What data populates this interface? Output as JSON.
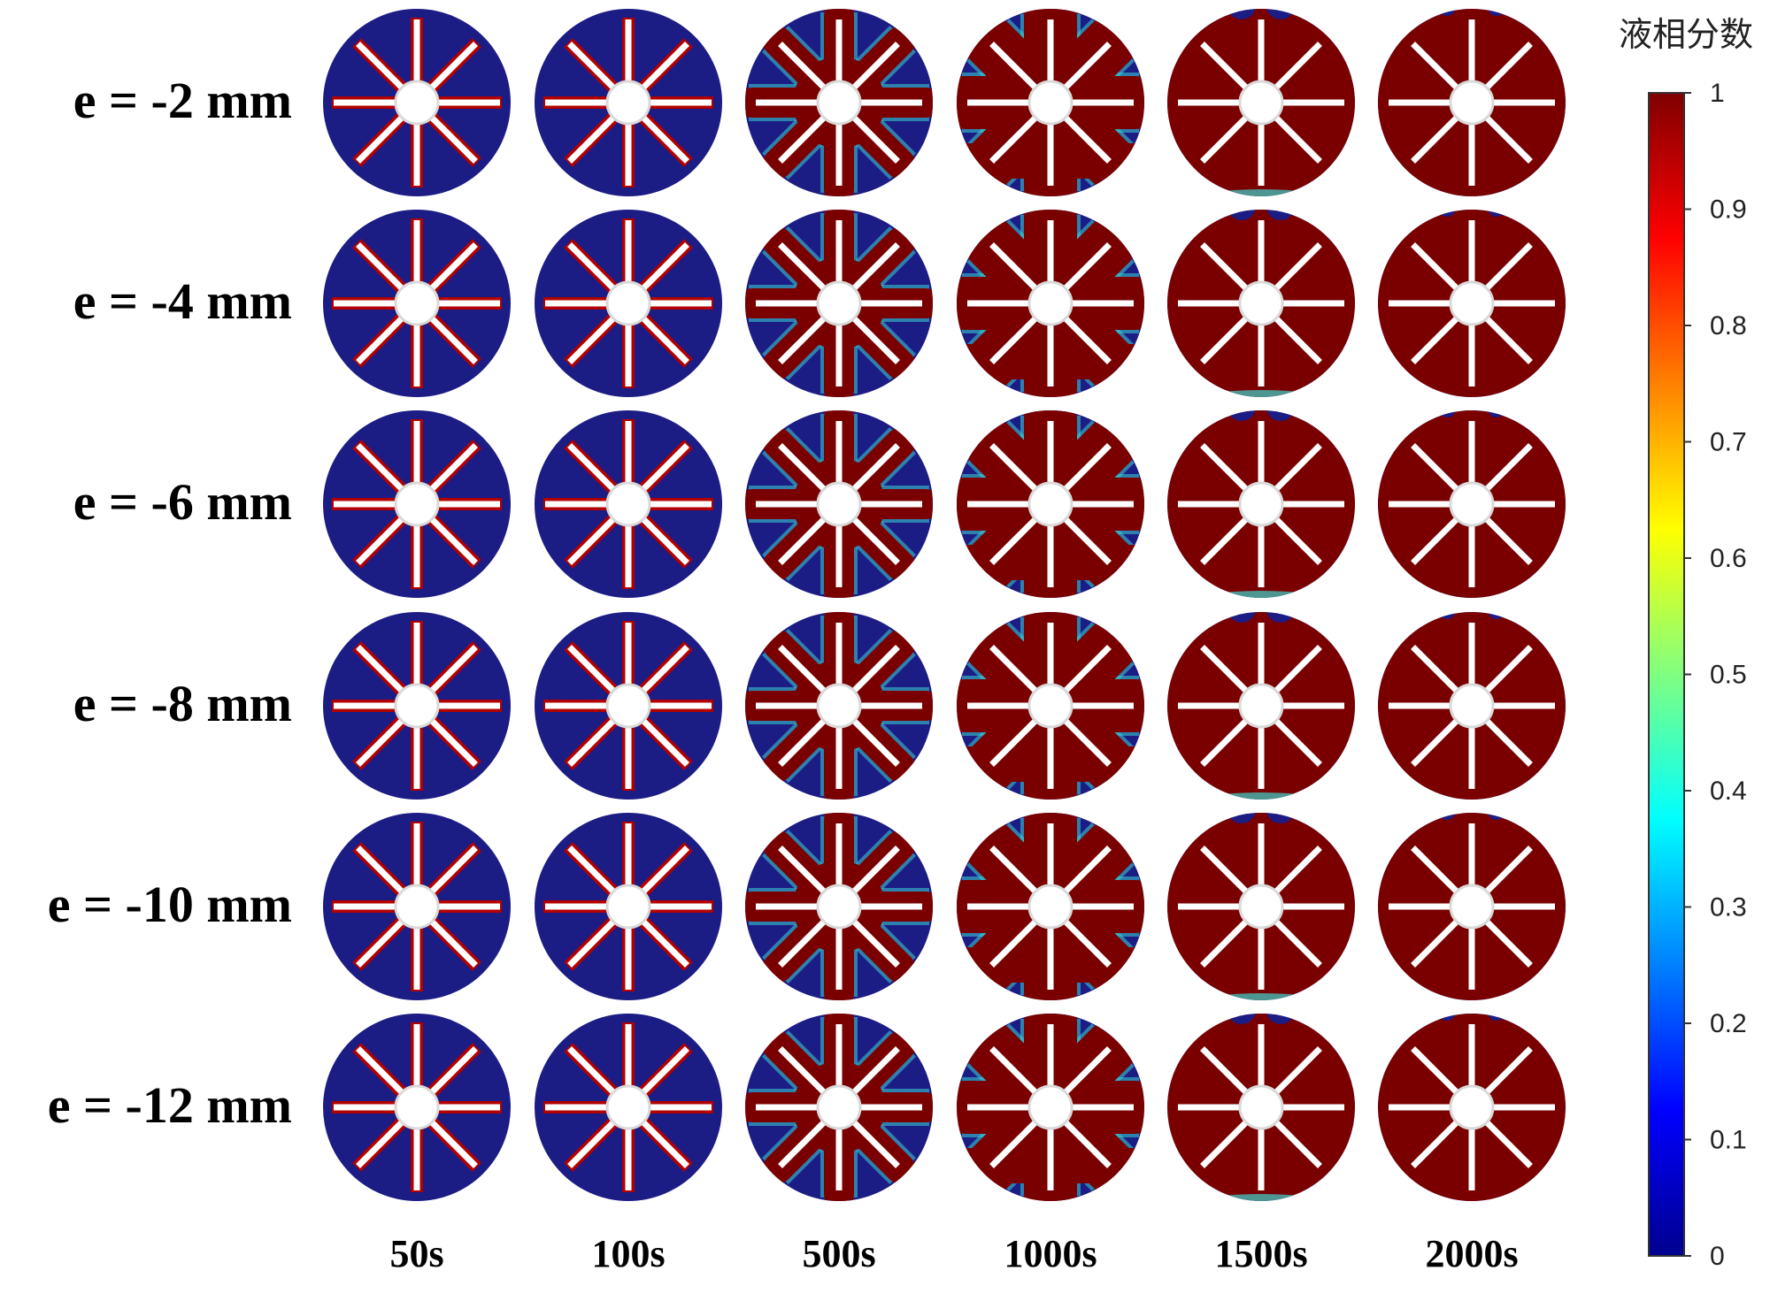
{
  "rows": [
    {
      "label": "e = -2 mm"
    },
    {
      "label": "e = -4 mm"
    },
    {
      "label": "e = -6 mm"
    },
    {
      "label": "e = -8 mm"
    },
    {
      "label": "e = -10 mm"
    },
    {
      "label": "e = -12 mm"
    }
  ],
  "columns": [
    {
      "label": "50s"
    },
    {
      "label": "100s"
    },
    {
      "label": "500s"
    },
    {
      "label": "1000s"
    },
    {
      "label": "1500s"
    },
    {
      "label": "2000s"
    }
  ],
  "melt_stage": [
    [
      0,
      0,
      1,
      2,
      3,
      4
    ],
    [
      0,
      0,
      1,
      2,
      3,
      4
    ],
    [
      0,
      0,
      1,
      2,
      3,
      4
    ],
    [
      0,
      0,
      1,
      2,
      3,
      4
    ],
    [
      0,
      0,
      1,
      2,
      3,
      4
    ],
    [
      0,
      0,
      1,
      2,
      3,
      4
    ]
  ],
  "colorbar": {
    "title": "液相分数",
    "ticks": [
      "1",
      "0.9",
      "0.8",
      "0.7",
      "0.6",
      "0.5",
      "0.4",
      "0.3",
      "0.2",
      "0.1",
      "0"
    ],
    "colors": [
      "#800000",
      "#ff0000",
      "#ff8000",
      "#ffff00",
      "#80ff80",
      "#00ffff",
      "#0080ff",
      "#0000ff",
      "#00008f"
    ]
  },
  "colors": {
    "solid": "#1c1c85",
    "liquid": "#7a0000",
    "fin": "#ffffff",
    "mushy": "#3ad6d0"
  }
}
